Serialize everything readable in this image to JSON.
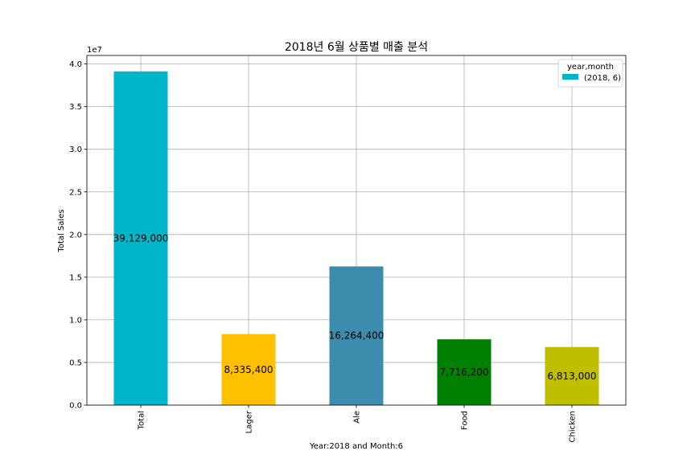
{
  "chart_data": {
    "type": "bar",
    "title": "2018년 6월 상품별 매출 분석",
    "xlabel": "Year:2018 and Month:6",
    "ylabel": "Total Sales",
    "y_offset_label": "1e7",
    "ylim": [
      0,
      41000000
    ],
    "yticks": [
      0,
      5000000,
      10000000,
      15000000,
      20000000,
      25000000,
      30000000,
      35000000,
      40000000
    ],
    "ytick_labels": [
      "0.0",
      "0.5",
      "1.0",
      "1.5",
      "2.0",
      "2.5",
      "3.0",
      "3.5",
      "4.0"
    ],
    "categories": [
      "Total",
      "Lager",
      "Ale",
      "Food",
      "Chicken"
    ],
    "values": [
      39129000,
      8335400,
      16264400,
      7716200,
      6813000
    ],
    "data_labels": [
      "39,129,000",
      "8,335,400",
      "16,264,400",
      "7,716,200",
      "6,813,000"
    ],
    "bar_colors": [
      "#00b5c8",
      "#ffc000",
      "#3d8bad",
      "#008000",
      "#bfbf00"
    ],
    "grid": true,
    "legend": {
      "title": "year,month",
      "placement": "top-right",
      "entries": [
        {
          "label": "(2018, 6)",
          "color": "#00b5c8"
        }
      ]
    }
  }
}
